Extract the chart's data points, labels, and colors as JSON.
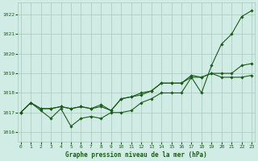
{
  "title": "Graphe pression niveau de la mer (hPa)",
  "background_color": "#d0ece4",
  "grid_color": "#a8c8bc",
  "line_color": "#1a5c1a",
  "ylim": [
    1015.5,
    1022.6
  ],
  "xlim": [
    -0.3,
    23.3
  ],
  "yticks": [
    1016,
    1017,
    1018,
    1019,
    1020,
    1021,
    1022
  ],
  "xticks": [
    0,
    1,
    2,
    3,
    4,
    5,
    6,
    7,
    8,
    9,
    10,
    11,
    12,
    13,
    14,
    15,
    16,
    17,
    18,
    19,
    20,
    21,
    22,
    23
  ],
  "series": [
    [
      1017.0,
      1017.5,
      1017.1,
      1016.7,
      1017.2,
      1016.3,
      1016.7,
      1016.8,
      1016.7,
      1017.0,
      1017.0,
      1017.1,
      1017.5,
      1017.7,
      1018.0,
      1018.0,
      1018.0,
      1018.8,
      1018.0,
      1019.4,
      1020.5,
      1021.0,
      1021.9,
      1022.2
    ],
    [
      1017.0,
      1017.5,
      1017.2,
      1017.2,
      1017.3,
      1017.2,
      1017.3,
      1017.2,
      1017.3,
      1017.1,
      1017.7,
      1017.8,
      1017.9,
      1018.1,
      1018.5,
      1018.5,
      1018.5,
      1018.8,
      1018.8,
      1019.0,
      1019.0,
      1019.0,
      1019.4,
      1019.5
    ],
    [
      1017.0,
      1017.5,
      1017.2,
      1017.2,
      1017.3,
      1017.2,
      1017.3,
      1017.2,
      1017.4,
      1017.1,
      1017.7,
      1017.8,
      1018.0,
      1018.1,
      1018.5,
      1018.5,
      1018.5,
      1018.9,
      1018.8,
      1019.0,
      1018.8,
      1018.8,
      1018.8,
      1018.9
    ]
  ]
}
